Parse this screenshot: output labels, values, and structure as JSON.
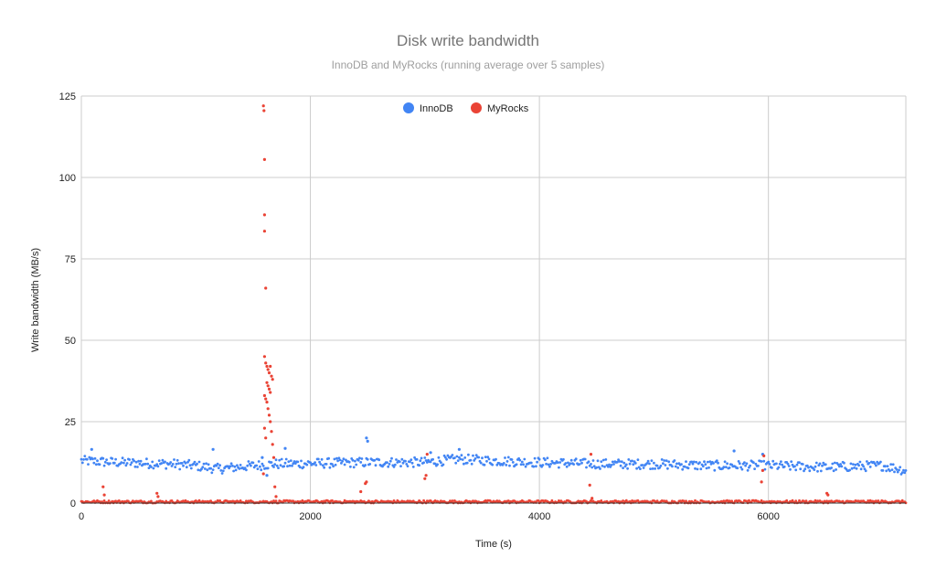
{
  "chart_data": {
    "type": "scatter",
    "title": "Disk write bandwidth",
    "subtitle": "InnoDB and MyRocks (running average over 5 samples)",
    "xlabel": "Time (s)",
    "ylabel": "Write bandwidth (MB/s)",
    "xlim": [
      0,
      7200
    ],
    "ylim": [
      0,
      125
    ],
    "xticks": [
      0,
      2000,
      4000,
      6000
    ],
    "yticks": [
      0,
      25,
      50,
      75,
      100,
      125
    ],
    "grid": true,
    "legend_position": "top-center",
    "series": [
      {
        "name": "InnoDB",
        "color": "#4285f4",
        "sample_interval": 10,
        "baseline": [
          [
            0,
            13
          ],
          [
            300,
            12.5
          ],
          [
            800,
            12
          ],
          [
            1000,
            11.5
          ],
          [
            1200,
            10.5
          ],
          [
            1500,
            11.5
          ],
          [
            1700,
            12
          ],
          [
            2500,
            12.5
          ],
          [
            3000,
            12.5
          ],
          [
            3300,
            13.5
          ],
          [
            3600,
            13
          ],
          [
            4000,
            12.5
          ],
          [
            4500,
            12
          ],
          [
            5000,
            12
          ],
          [
            5500,
            11.5
          ],
          [
            6000,
            11.5
          ],
          [
            6500,
            11
          ],
          [
            7000,
            11.5
          ],
          [
            7200,
            10
          ]
        ],
        "spread": 1.5,
        "outliers": [
          [
            90,
            16.5
          ],
          [
            1150,
            16.5
          ],
          [
            1580,
            14
          ],
          [
            1620,
            8.5
          ],
          [
            1780,
            16.8
          ],
          [
            2490,
            20
          ],
          [
            2500,
            19
          ],
          [
            3050,
            15.5
          ],
          [
            3300,
            16.5
          ],
          [
            5700,
            16
          ],
          [
            5950,
            15
          ]
        ]
      },
      {
        "name": "MyRocks",
        "color": "#ea4335",
        "sample_interval": 10,
        "baseline": [
          [
            0,
            0.4
          ],
          [
            7200,
            0.4
          ]
        ],
        "spread": 0.4,
        "outliers": [
          [
            190,
            5
          ],
          [
            200,
            2.5
          ],
          [
            660,
            3
          ],
          [
            670,
            2
          ],
          [
            1590,
            122
          ],
          [
            1595,
            120.5
          ],
          [
            1600,
            105.5
          ],
          [
            1600,
            88.5
          ],
          [
            1600,
            83.5
          ],
          [
            1610,
            66
          ],
          [
            1600,
            45
          ],
          [
            1610,
            43
          ],
          [
            1620,
            42
          ],
          [
            1630,
            41
          ],
          [
            1640,
            40
          ],
          [
            1650,
            42
          ],
          [
            1660,
            39
          ],
          [
            1670,
            38
          ],
          [
            1620,
            37
          ],
          [
            1630,
            36
          ],
          [
            1640,
            35
          ],
          [
            1650,
            34
          ],
          [
            1600,
            33
          ],
          [
            1610,
            32
          ],
          [
            1620,
            31
          ],
          [
            1630,
            29
          ],
          [
            1640,
            27
          ],
          [
            1650,
            25
          ],
          [
            1600,
            23
          ],
          [
            1610,
            20
          ],
          [
            1660,
            22
          ],
          [
            1670,
            18
          ],
          [
            1680,
            14
          ],
          [
            1590,
            9
          ],
          [
            1690,
            5
          ],
          [
            1700,
            2
          ],
          [
            2440,
            3.5
          ],
          [
            2480,
            6
          ],
          [
            2490,
            6.5
          ],
          [
            3000,
            7.5
          ],
          [
            3010,
            8.5
          ],
          [
            3020,
            15
          ],
          [
            4440,
            5.5
          ],
          [
            4450,
            15
          ],
          [
            4460,
            1.5
          ],
          [
            5940,
            6.5
          ],
          [
            5950,
            10
          ],
          [
            5960,
            14.5
          ],
          [
            6510,
            3
          ],
          [
            6520,
            2.5
          ]
        ]
      }
    ]
  }
}
